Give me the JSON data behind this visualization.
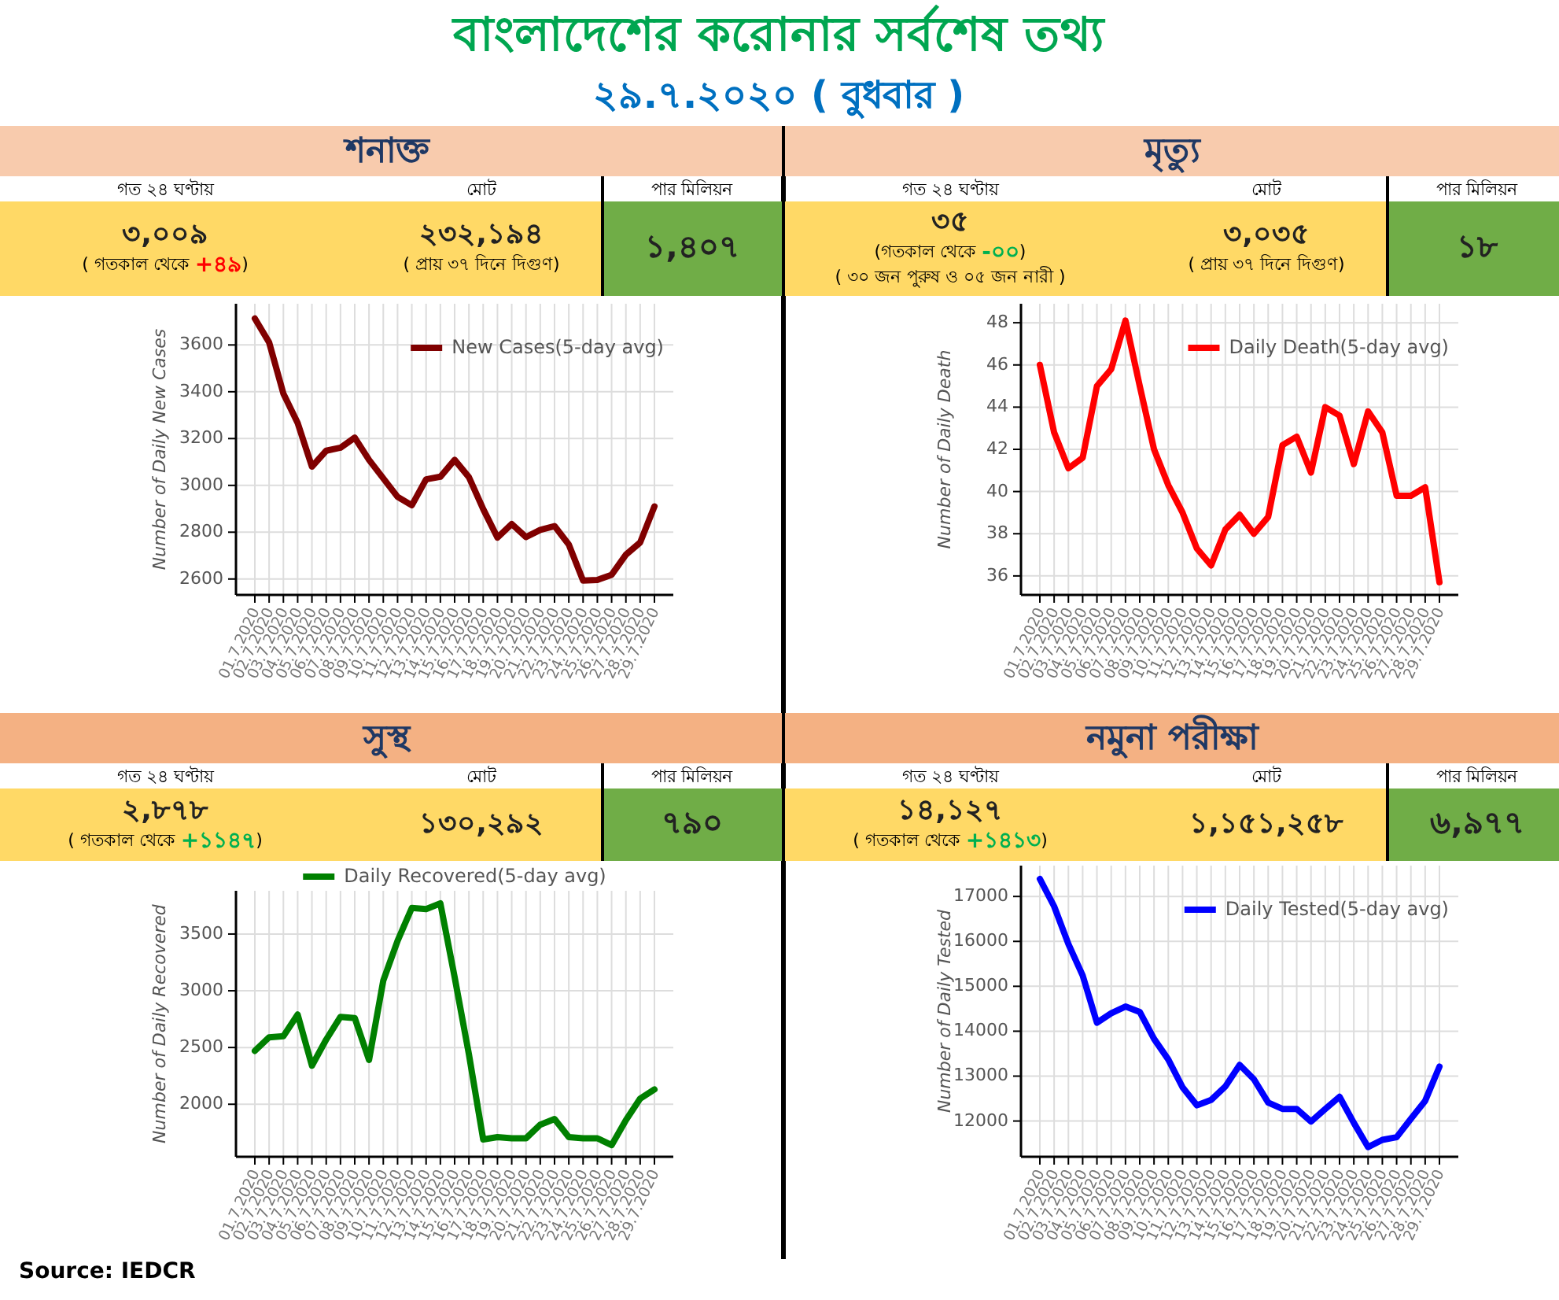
{
  "chart_data": [
    {
      "type": "other",
      "title": "বাংলাদেশের করোনার সর্বশেষ তথ্য",
      "subtitle": "২৯.৭.২০২০ ( বুধবার )"
    },
    {
      "type": "other",
      "title": "শনাক্ত"
    },
    {
      "type": "other",
      "title": "গত ২৪ ঘণ্টায়",
      "annotations": [
        "৩,০০৯",
        "( গতকাল থেকে ",
        "+৪৯",
        ")"
      ],
      "colors": [
        "#222222",
        "#000000",
        "#ff0000",
        "#000000"
      ]
    },
    {
      "type": "other",
      "title": "মোট",
      "annotations": [
        "২৩২,১৯৪",
        "( প্রায় ৩৭ দিনে দিগুণ)"
      ],
      "colors": [
        "#222222",
        "#000000"
      ]
    },
    {
      "type": "other",
      "title": "পার মিলিয়ন",
      "annotations": [
        "১,৪০৭"
      ],
      "colors": [
        "#222222"
      ]
    },
    {
      "type": "line",
      "categories": [
        "01.7.2020",
        "02.7.2020",
        "03.7.2020",
        "04.7.2020",
        "05.7.2020",
        "06.7.2020",
        "07.7.2020",
        "08.7.2020",
        "09.7.2020",
        "10.7.2020",
        "11.7.2020",
        "12.7.2020",
        "13.7.2020",
        "14.7.2020",
        "15.7.2020",
        "16.7.2020",
        "17.7.2020",
        "18.7.2020",
        "19.7.2020",
        "20.7.2020",
        "21.7.2020",
        "22.7.2020",
        "23.7.2020",
        "24.7.2020",
        "25.7.2020",
        "26.7.2020",
        "27.7.2020",
        "28.7.2020",
        "29.7.2020"
      ],
      "ylabel": "Number of Daily New Cases",
      "ylim": [
        2532,
        3776
      ],
      "yticks": [
        2600,
        2800,
        3000,
        3200,
        3400,
        3600
      ],
      "grid": true,
      "legend": "top right",
      "series": [
        {
          "name": "New Cases(5-day avg)",
          "color": "#800000",
          "values": [
            3713,
            3611,
            3392,
            3267,
            3080,
            3148,
            3161,
            3204,
            3109,
            3030,
            2951,
            2915,
            3026,
            3037,
            3109,
            3035,
            2899,
            2777,
            2835,
            2779,
            2810,
            2826,
            2747,
            2593,
            2596,
            2618,
            2704,
            2756,
            2910
          ]
        }
      ]
    },
    {
      "type": "other",
      "title": "মৃত্যু"
    },
    {
      "type": "other",
      "title": "গত ২৪ ঘণ্টায়",
      "annotations": [
        "৩৫",
        "(গতকাল থেকে ",
        "-০০",
        ")",
        "( ৩০ জন পুরুষ ও ০৫ জন নারী )"
      ],
      "colors": [
        "#222222",
        "#000000",
        "#00b050",
        "#000000",
        "#000000"
      ]
    },
    {
      "type": "other",
      "title": "মোট",
      "annotations": [
        "৩,০৩৫",
        "( প্রায় ৩৭ দিনে দিগুণ)"
      ],
      "colors": [
        "#222222",
        "#000000"
      ]
    },
    {
      "type": "other",
      "title": "পার মিলিয়ন",
      "annotations": [
        "১৮"
      ],
      "colors": [
        "#222222"
      ]
    },
    {
      "type": "line",
      "categories": [
        "01.7.2020",
        "02.7.2020",
        "03.7.2020",
        "04.7.2020",
        "05.7.2020",
        "06.7.2020",
        "07.7.2020",
        "08.7.2020",
        "09.7.2020",
        "10.7.2020",
        "11.7.2020",
        "12.7.2020",
        "13.7.2020",
        "14.7.2020",
        "15.7.2020",
        "16.7.2020",
        "17.7.2020",
        "18.7.2020",
        "19.7.2020",
        "20.7.2020",
        "21.7.2020",
        "22.7.2020",
        "23.7.2020",
        "24.7.2020",
        "25.7.2020",
        "26.7.2020",
        "27.7.2020",
        "28.7.2020",
        "29.7.2020"
      ],
      "ylabel": "Number of Daily Death",
      "ylim": [
        35.1,
        48.9
      ],
      "yticks": [
        36,
        38,
        40,
        42,
        44,
        46,
        48
      ],
      "grid": true,
      "legend": "top right",
      "series": [
        {
          "name": "Daily Death(5-day avg)",
          "color": "#ff0000",
          "values": [
            46,
            42.8,
            41.1,
            41.6,
            45,
            45.8,
            48.1,
            45,
            42,
            40.3,
            39,
            37.3,
            36.5,
            38.2,
            38.9,
            38,
            38.8,
            42.2,
            42.6,
            40.9,
            44,
            43.6,
            41.3,
            43.8,
            42.8,
            39.8,
            39.8,
            40.2,
            35.7
          ]
        }
      ]
    },
    {
      "type": "other",
      "title": "সুস্থ"
    },
    {
      "type": "other",
      "title": "গত ২৪ ঘণ্টায়",
      "annotations": [
        "২,৮৭৮",
        "( গতকাল থেকে ",
        "+১১৪৭",
        ")"
      ],
      "colors": [
        "#222222",
        "#000000",
        "#00b050",
        "#000000"
      ]
    },
    {
      "type": "other",
      "title": "মোট",
      "annotations": [
        "১৩০,২৯২"
      ],
      "colors": [
        "#222222"
      ]
    },
    {
      "type": "other",
      "title": "পার মিলিয়ন",
      "annotations": [
        "৭৯০"
      ],
      "colors": [
        "#222222"
      ]
    },
    {
      "type": "line",
      "categories": [
        "01.7.2020",
        "02.7.2020",
        "03.7.2020",
        "04.7.2020",
        "05.7.2020",
        "06.7.2020",
        "07.7.2020",
        "08.7.2020",
        "09.7.2020",
        "10.7.2020",
        "11.7.2020",
        "12.7.2020",
        "13.7.2020",
        "14.7.2020",
        "15.7.2020",
        "16.7.2020",
        "17.7.2020",
        "18.7.2020",
        "19.7.2020",
        "20.7.2020",
        "21.7.2020",
        "22.7.2020",
        "23.7.2020",
        "24.7.2020",
        "25.7.2020",
        "26.7.2020",
        "27.7.2020",
        "28.7.2020",
        "29.7.2020"
      ],
      "ylabel": "Number of Daily Recovered",
      "ylim": [
        1537,
        3881
      ],
      "yticks": [
        2000,
        2500,
        3000,
        3500
      ],
      "grid": true,
      "legend": "top",
      "series": [
        {
          "name": "Daily Recovered(5-day avg)",
          "color": "#008000",
          "values": [
            2470,
            2590,
            2600,
            2790,
            2340,
            2570,
            2770,
            2760,
            2390,
            3090,
            3440,
            3730,
            3720,
            3770,
            3120,
            2440,
            1690,
            1710,
            1700,
            1700,
            1820,
            1870,
            1710,
            1700,
            1700,
            1640,
            1860,
            2050,
            2130
          ]
        }
      ]
    },
    {
      "type": "other",
      "title": "নমুনা পরীক্ষা"
    },
    {
      "type": "other",
      "title": "গত ২৪ ঘণ্টায়",
      "annotations": [
        "১৪,১২৭",
        "( গতকাল থেকে ",
        "+১৪১৩",
        ")"
      ],
      "colors": [
        "#222222",
        "#000000",
        "#00b050",
        "#000000"
      ]
    },
    {
      "type": "other",
      "title": "মোট",
      "annotations": [
        "১,১৫১,২৫৮"
      ],
      "colors": [
        "#222222"
      ]
    },
    {
      "type": "other",
      "title": "পার মিলিয়ন",
      "annotations": [
        "৬,৯৭৭"
      ],
      "colors": [
        "#222222"
      ]
    },
    {
      "type": "line",
      "categories": [
        "01.7.2020",
        "02.7.2020",
        "03.7.2020",
        "04.7.2020",
        "05.7.2020",
        "06.7.2020",
        "07.7.2020",
        "08.7.2020",
        "09.7.2020",
        "10.7.2020",
        "11.7.2020",
        "12.7.2020",
        "13.7.2020",
        "14.7.2020",
        "15.7.2020",
        "16.7.2020",
        "17.7.2020",
        "18.7.2020",
        "19.7.2020",
        "20.7.2020",
        "21.7.2020",
        "22.7.2020",
        "23.7.2020",
        "24.7.2020",
        "25.7.2020",
        "26.7.2020",
        "27.7.2020",
        "28.7.2020",
        "29.7.2020"
      ],
      "ylabel": "Number of Daily Tested",
      "ylim": [
        11204,
        17687
      ],
      "yticks": [
        12000,
        13000,
        14000,
        15000,
        16000,
        17000
      ],
      "grid": true,
      "legend": "top right",
      "series": [
        {
          "name": "Daily Tested(5-day avg)",
          "color": "#0000ff",
          "values": [
            17390,
            16780,
            15940,
            15240,
            14190,
            14400,
            14550,
            14430,
            13830,
            13370,
            12750,
            12350,
            12470,
            12770,
            13250,
            12930,
            12410,
            12270,
            12270,
            11990,
            12270,
            12540,
            11960,
            11420,
            11580,
            11640,
            12050,
            12450,
            13210
          ]
        }
      ]
    },
    {
      "type": "other",
      "annotations": [
        "Source: IEDCR"
      ]
    }
  ]
}
